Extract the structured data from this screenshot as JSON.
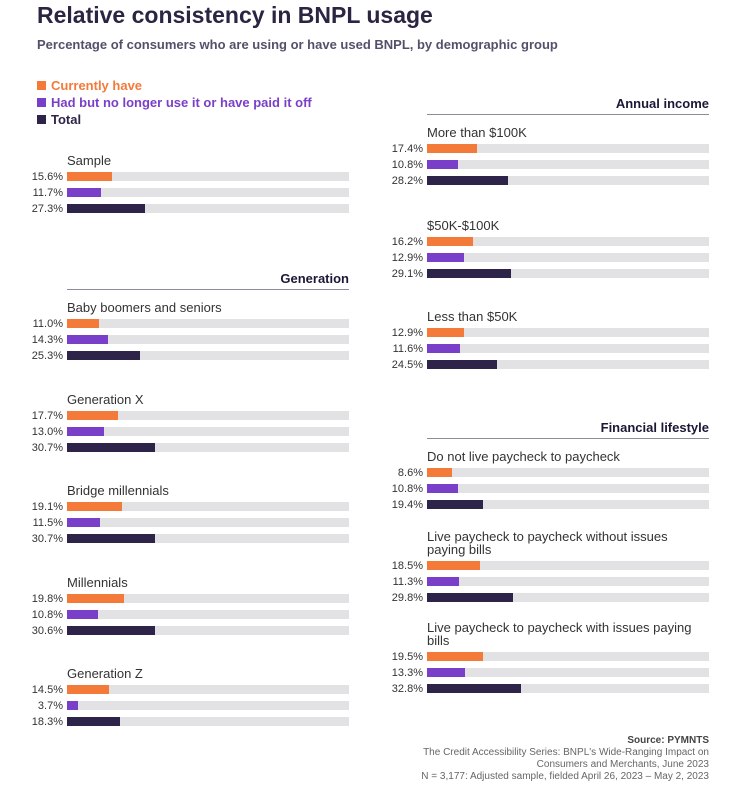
{
  "title": "Relative consistency in BNPL usage",
  "subtitle": "Percentage of consumers who are using or have used BNPL, by demographic group",
  "colors": {
    "currently": "#f47a3a",
    "had": "#7a3fc8",
    "total": "#2e2449",
    "track": "#e2e2e4"
  },
  "legend": [
    {
      "label": "Currently have",
      "color": "#f47a3a"
    },
    {
      "label": "Had but no longer use it or have paid it off",
      "color": "#7a3fc8"
    },
    {
      "label": "Total",
      "color": "#2e2449"
    }
  ],
  "sections": {
    "generation": "Generation",
    "income": "Annual income",
    "lifestyle": "Financial lifestyle"
  },
  "source": {
    "title": "Source: PYMNTS",
    "line1": "The Credit Accessibility Series: BNPL's Wide-Ranging Impact on",
    "line2": "Consumers and Merchants, June 2023",
    "line3": "N = 3,177: Adjusted sample, fielded April 26, 2023 – May 2, 2023"
  },
  "chart_data": {
    "type": "bar",
    "orientation": "horizontal",
    "title": "Relative consistency in BNPL usage",
    "subtitle": "Percentage of consumers who are using or have used BNPL, by demographic group",
    "series": [
      "Currently have",
      "Had but no longer use it or have paid it off",
      "Total"
    ],
    "xlim": [
      0,
      100
    ],
    "groups": [
      {
        "section": "",
        "label": "Sample",
        "values": [
          15.6,
          11.7,
          27.3
        ],
        "labels": [
          "15.6%",
          "11.7%",
          "27.3%"
        ]
      },
      {
        "section": "Generation",
        "label": "Baby boomers and seniors",
        "values": [
          11.0,
          14.3,
          25.3
        ],
        "labels": [
          "11.0%",
          "14.3%",
          "25.3%"
        ]
      },
      {
        "section": "Generation",
        "label": "Generation X",
        "values": [
          17.7,
          13.0,
          30.7
        ],
        "labels": [
          "17.7%",
          "13.0%",
          "30.7%"
        ]
      },
      {
        "section": "Generation",
        "label": "Bridge millennials",
        "values": [
          19.1,
          11.5,
          30.7
        ],
        "labels": [
          "19.1%",
          "11.5%",
          "30.7%"
        ]
      },
      {
        "section": "Generation",
        "label": "Millennials",
        "values": [
          19.8,
          10.8,
          30.6
        ],
        "labels": [
          "19.8%",
          "10.8%",
          "30.6%"
        ]
      },
      {
        "section": "Generation",
        "label": "Generation Z",
        "values": [
          14.5,
          3.7,
          18.3
        ],
        "labels": [
          "14.5%",
          "3.7%",
          "18.3%"
        ]
      },
      {
        "section": "Annual income",
        "label": "More than $100K",
        "values": [
          17.4,
          10.8,
          28.2
        ],
        "labels": [
          "17.4%",
          "10.8%",
          "28.2%"
        ]
      },
      {
        "section": "Annual income",
        "label": "$50K-$100K",
        "values": [
          16.2,
          12.9,
          29.1
        ],
        "labels": [
          "16.2%",
          "12.9%",
          "29.1%"
        ]
      },
      {
        "section": "Annual income",
        "label": "Less than $50K",
        "values": [
          12.9,
          11.6,
          24.5
        ],
        "labels": [
          "12.9%",
          "11.6%",
          "24.5%"
        ]
      },
      {
        "section": "Financial lifestyle",
        "label": "Do not live paycheck to paycheck",
        "values": [
          8.6,
          10.8,
          19.4
        ],
        "labels": [
          "8.6%",
          "10.8%",
          "19.4%"
        ]
      },
      {
        "section": "Financial lifestyle",
        "label": "Live paycheck to paycheck without issues paying bills",
        "values": [
          18.5,
          11.3,
          29.8
        ],
        "labels": [
          "18.5%",
          "11.3%",
          "29.8%"
        ]
      },
      {
        "section": "Financial lifestyle",
        "label": "Live paycheck to paycheck with issues paying bills",
        "values": [
          19.5,
          13.3,
          32.8
        ],
        "labels": [
          "19.5%",
          "13.3%",
          "32.8%"
        ]
      }
    ]
  }
}
